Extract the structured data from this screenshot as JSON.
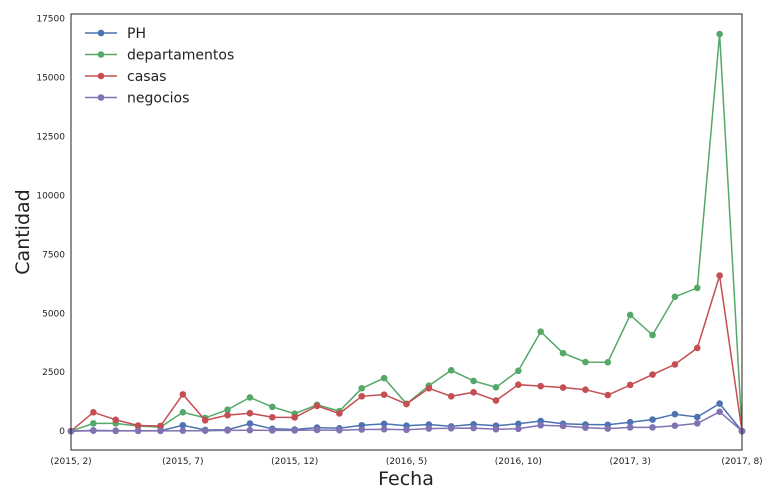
{
  "chart_data": {
    "type": "line",
    "title": "",
    "xlabel": "Fecha",
    "ylabel": "Cantidad",
    "x": [
      "(2015, 2)",
      "(2015, 3)",
      "(2015, 4)",
      "(2015, 5)",
      "(2015, 6)",
      "(2015, 7)",
      "(2015, 8)",
      "(2015, 9)",
      "(2015, 10)",
      "(2015, 11)",
      "(2015, 12)",
      "(2016, 1)",
      "(2016, 2)",
      "(2016, 3)",
      "(2016, 4)",
      "(2016, 5)",
      "(2016, 6)",
      "(2016, 7)",
      "(2016, 8)",
      "(2016, 9)",
      "(2016, 10)",
      "(2016, 11)",
      "(2016, 12)",
      "(2017, 1)",
      "(2017, 2)",
      "(2017, 3)",
      "(2017, 4)",
      "(2017, 5)",
      "(2017, 6)",
      "(2017, 7)",
      "(2017, 8)"
    ],
    "x_tick_labels": [
      "(2015, 2)",
      "(2015, 7)",
      "(2015, 12)",
      "(2016, 5)",
      "(2016, 10)",
      "(2017, 3)",
      "(2017, 8)"
    ],
    "x_tick_indices": [
      0,
      5,
      10,
      15,
      20,
      25,
      30
    ],
    "ylim": [
      -800,
      17700
    ],
    "y_ticks": [
      0,
      2500,
      5000,
      7500,
      10000,
      12500,
      15000,
      17500
    ],
    "grid": false,
    "legend_position": "top-left",
    "series": [
      {
        "name": "PH",
        "color": "#4c72b0",
        "values": [
          0,
          30,
          20,
          20,
          20,
          250,
          50,
          60,
          320,
          100,
          70,
          150,
          120,
          250,
          310,
          230,
          280,
          200,
          290,
          230,
          310,
          430,
          310,
          280,
          270,
          380,
          490,
          720,
          600,
          1170,
          0
        ]
      },
      {
        "name": "departamentos",
        "color": "#55a868",
        "values": [
          0,
          330,
          330,
          220,
          170,
          800,
          560,
          910,
          1430,
          1030,
          740,
          1120,
          850,
          1820,
          2250,
          1160,
          1930,
          2580,
          2130,
          1860,
          2560,
          4220,
          3310,
          2930,
          2920,
          4930,
          4080,
          5700,
          6080,
          16850,
          0
        ]
      },
      {
        "name": "casas",
        "color": "#c44e52",
        "values": [
          0,
          800,
          480,
          240,
          220,
          1560,
          460,
          680,
          760,
          590,
          580,
          1070,
          750,
          1480,
          1550,
          1150,
          1820,
          1480,
          1650,
          1300,
          1970,
          1910,
          1850,
          1760,
          1530,
          1960,
          2400,
          2830,
          3530,
          6600,
          0
        ]
      },
      {
        "name": "negocios",
        "color": "#8172b2",
        "values": [
          0,
          20,
          10,
          10,
          10,
          20,
          20,
          30,
          40,
          30,
          30,
          50,
          40,
          70,
          80,
          60,
          110,
          120,
          130,
          80,
          100,
          250,
          220,
          150,
          110,
          160,
          160,
          230,
          330,
          820,
          0
        ]
      }
    ]
  }
}
